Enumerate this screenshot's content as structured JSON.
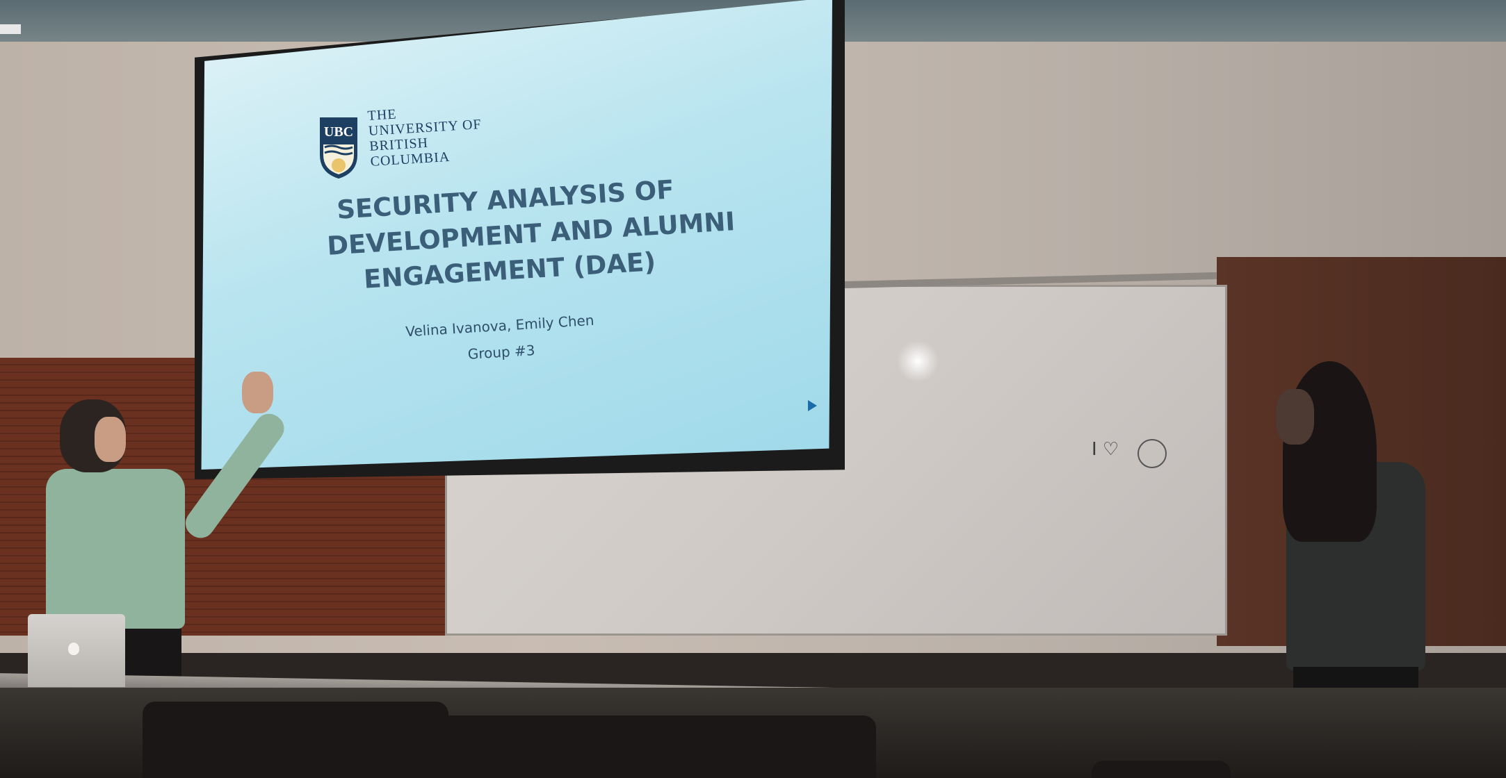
{
  "slide": {
    "logo": {
      "text": "UBC",
      "lines": [
        "THE",
        "UNIVERSITY OF",
        "BRITISH",
        "COLUMBIA"
      ]
    },
    "title_lines": [
      "SECURITY ANALYSIS OF",
      "DEVELOPMENT AND ALUMNI",
      "ENGAGEMENT (DAE)"
    ],
    "authors": "Velina Ivanova, Emily Chen",
    "group": "Group #3"
  },
  "whiteboard": {
    "doodle_text": "I ♡"
  },
  "colors": {
    "slide_title": "#3c5f79",
    "ubc_blue": "#1c3f62",
    "ubc_gold": "#e9c46a"
  }
}
